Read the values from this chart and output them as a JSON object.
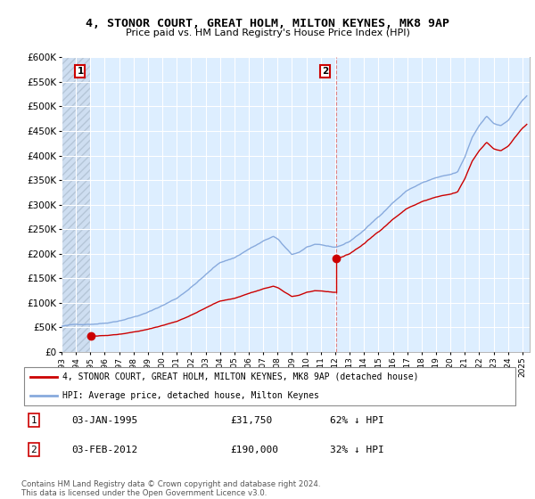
{
  "title": "4, STONOR COURT, GREAT HOLM, MILTON KEYNES, MK8 9AP",
  "subtitle": "Price paid vs. HM Land Registry's House Price Index (HPI)",
  "ylim": [
    0,
    600000
  ],
  "ytick_vals": [
    0,
    50000,
    100000,
    150000,
    200000,
    250000,
    300000,
    350000,
    400000,
    450000,
    500000,
    550000,
    600000
  ],
  "ytick_labels": [
    "£0",
    "£50K",
    "£100K",
    "£150K",
    "£200K",
    "£250K",
    "£300K",
    "£350K",
    "£400K",
    "£450K",
    "£500K",
    "£550K",
    "£600K"
  ],
  "xmin": 1993.0,
  "xmax": 2025.5,
  "sale1_x": 1995.04,
  "sale1_y": 31750,
  "sale2_x": 2012.09,
  "sale2_y": 190000,
  "property_color": "#cc0000",
  "hpi_color": "#88aadd",
  "dashed_color": "#dd6666",
  "legend_property": "4, STONOR COURT, GREAT HOLM, MILTON KEYNES, MK8 9AP (detached house)",
  "legend_hpi": "HPI: Average price, detached house, Milton Keynes",
  "table_row1": [
    "1",
    "03-JAN-1995",
    "£31,750",
    "62% ↓ HPI"
  ],
  "table_row2": [
    "2",
    "03-FEB-2012",
    "£190,000",
    "32% ↓ HPI"
  ],
  "footnote1": "Contains HM Land Registry data © Crown copyright and database right 2024.",
  "footnote2": "This data is licensed under the Open Government Licence v3.0."
}
